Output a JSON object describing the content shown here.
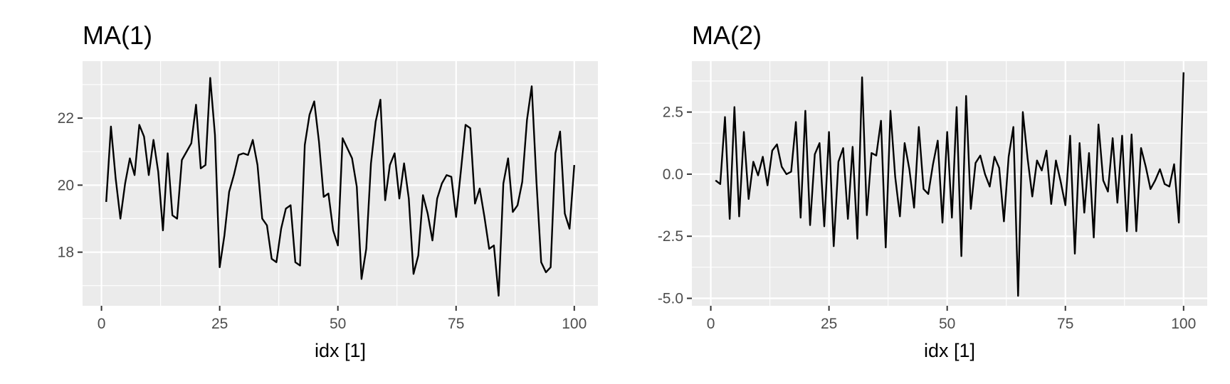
{
  "chart_data": [
    {
      "type": "line",
      "title": "MA(1)",
      "xlabel": "idx [1]",
      "ylabel": "",
      "grid": true,
      "xlim": [
        -4,
        105
      ],
      "ylim": [
        16.4,
        23.7
      ],
      "x_ticks": [
        0,
        25,
        50,
        75,
        100
      ],
      "x_tick_labels": [
        "0",
        "25",
        "50",
        "75",
        "100"
      ],
      "y_ticks": [
        18,
        20,
        22
      ],
      "y_tick_labels": [
        "18",
        "20",
        "22"
      ],
      "x_minor": [
        12.5,
        37.5,
        62.5,
        87.5
      ],
      "y_minor": [
        17,
        19,
        21,
        23
      ],
      "x": [
        1,
        2,
        3,
        4,
        5,
        6,
        7,
        8,
        9,
        10,
        11,
        12,
        13,
        14,
        15,
        16,
        17,
        18,
        19,
        20,
        21,
        22,
        23,
        24,
        25,
        26,
        27,
        28,
        29,
        30,
        31,
        32,
        33,
        34,
        35,
        36,
        37,
        38,
        39,
        40,
        41,
        42,
        43,
        44,
        45,
        46,
        47,
        48,
        49,
        50,
        51,
        52,
        53,
        54,
        55,
        56,
        57,
        58,
        59,
        60,
        61,
        62,
        63,
        64,
        65,
        66,
        67,
        68,
        69,
        70,
        71,
        72,
        73,
        74,
        75,
        76,
        77,
        78,
        79,
        80,
        81,
        82,
        83,
        84,
        85,
        86,
        87,
        88,
        89,
        90,
        91,
        92,
        93,
        94,
        95,
        96,
        97,
        98,
        99,
        100
      ],
      "series": [
        {
          "values": [
            19.5,
            21.75,
            20.2,
            19.0,
            20.05,
            20.8,
            20.3,
            21.8,
            21.45,
            20.3,
            21.35,
            20.4,
            18.65,
            20.95,
            19.1,
            19.0,
            20.75,
            21.0,
            21.25,
            22.4,
            20.5,
            20.6,
            23.2,
            21.5,
            17.55,
            18.5,
            19.8,
            20.3,
            20.9,
            20.95,
            20.9,
            21.35,
            20.6,
            19.0,
            18.8,
            17.8,
            17.7,
            18.7,
            19.3,
            19.4,
            17.7,
            17.6,
            21.2,
            22.1,
            22.5,
            21.3,
            19.65,
            19.75,
            18.65,
            18.2,
            21.4,
            21.1,
            20.8,
            19.95,
            17.2,
            18.1,
            20.65,
            21.9,
            22.55,
            19.55,
            20.6,
            20.95,
            19.6,
            20.65,
            19.6,
            17.35,
            17.9,
            19.7,
            19.15,
            18.35,
            19.6,
            20.05,
            20.3,
            20.25,
            19.05,
            20.4,
            21.8,
            21.7,
            19.45,
            19.9,
            19.05,
            18.1,
            18.2,
            16.7,
            20.05,
            20.8,
            19.2,
            19.4,
            20.1,
            21.95,
            22.95,
            20.1,
            17.7,
            17.4,
            17.55,
            20.95,
            21.6,
            19.15,
            18.7,
            20.6
          ]
        }
      ]
    },
    {
      "type": "line",
      "title": "MA(2)",
      "xlabel": "idx [1]",
      "ylabel": "",
      "grid": true,
      "xlim": [
        -4,
        105
      ],
      "ylim": [
        -5.3,
        4.55
      ],
      "x_ticks": [
        0,
        25,
        50,
        75,
        100
      ],
      "x_tick_labels": [
        "0",
        "25",
        "50",
        "75",
        "100"
      ],
      "y_ticks": [
        -5.0,
        -2.5,
        0.0,
        2.5
      ],
      "y_tick_labels": [
        "-5.0",
        "-2.5",
        "0.0",
        "2.5"
      ],
      "x_minor": [
        12.5,
        37.5,
        62.5,
        87.5
      ],
      "y_minor": [
        -3.75,
        -1.25,
        1.25,
        3.75
      ],
      "x": [
        1,
        2,
        3,
        4,
        5,
        6,
        7,
        8,
        9,
        10,
        11,
        12,
        13,
        14,
        15,
        16,
        17,
        18,
        19,
        20,
        21,
        22,
        23,
        24,
        25,
        26,
        27,
        28,
        29,
        30,
        31,
        32,
        33,
        34,
        35,
        36,
        37,
        38,
        39,
        40,
        41,
        42,
        43,
        44,
        45,
        46,
        47,
        48,
        49,
        50,
        51,
        52,
        53,
        54,
        55,
        56,
        57,
        58,
        59,
        60,
        61,
        62,
        63,
        64,
        65,
        66,
        67,
        68,
        69,
        70,
        71,
        72,
        73,
        74,
        75,
        76,
        77,
        78,
        79,
        80,
        81,
        82,
        83,
        84,
        85,
        86,
        87,
        88,
        89,
        90,
        91,
        92,
        93,
        94,
        95,
        96,
        97,
        98,
        99,
        100
      ],
      "series": [
        {
          "values": [
            -0.25,
            -0.4,
            2.3,
            -1.8,
            2.7,
            -1.7,
            1.7,
            -1.0,
            0.5,
            -0.05,
            0.7,
            -0.45,
            0.95,
            1.2,
            0.3,
            0.0,
            0.1,
            2.1,
            -1.75,
            2.55,
            -2.05,
            0.8,
            1.25,
            -2.1,
            1.7,
            -2.9,
            0.5,
            1.05,
            -1.8,
            1.1,
            -2.6,
            3.9,
            -1.65,
            0.85,
            0.75,
            2.15,
            -2.95,
            2.55,
            -0.1,
            -1.7,
            1.25,
            0.2,
            -1.35,
            1.9,
            -0.6,
            -0.8,
            0.4,
            1.35,
            -1.95,
            1.7,
            -1.75,
            2.7,
            -3.3,
            3.15,
            -1.4,
            0.45,
            0.75,
            0.0,
            -0.5,
            0.7,
            0.25,
            -1.9,
            0.7,
            1.9,
            -4.9,
            2.5,
            0.65,
            -0.9,
            0.55,
            0.15,
            0.95,
            -1.2,
            0.55,
            -0.3,
            -1.25,
            1.55,
            -3.2,
            1.25,
            -1.55,
            0.85,
            -2.55,
            2.0,
            -0.25,
            -0.7,
            1.45,
            -1.15,
            1.55,
            -2.3,
            1.6,
            -2.3,
            1.05,
            0.3,
            -0.6,
            -0.25,
            0.2,
            -0.4,
            -0.5,
            0.4,
            -1.95,
            4.1
          ]
        }
      ]
    }
  ]
}
